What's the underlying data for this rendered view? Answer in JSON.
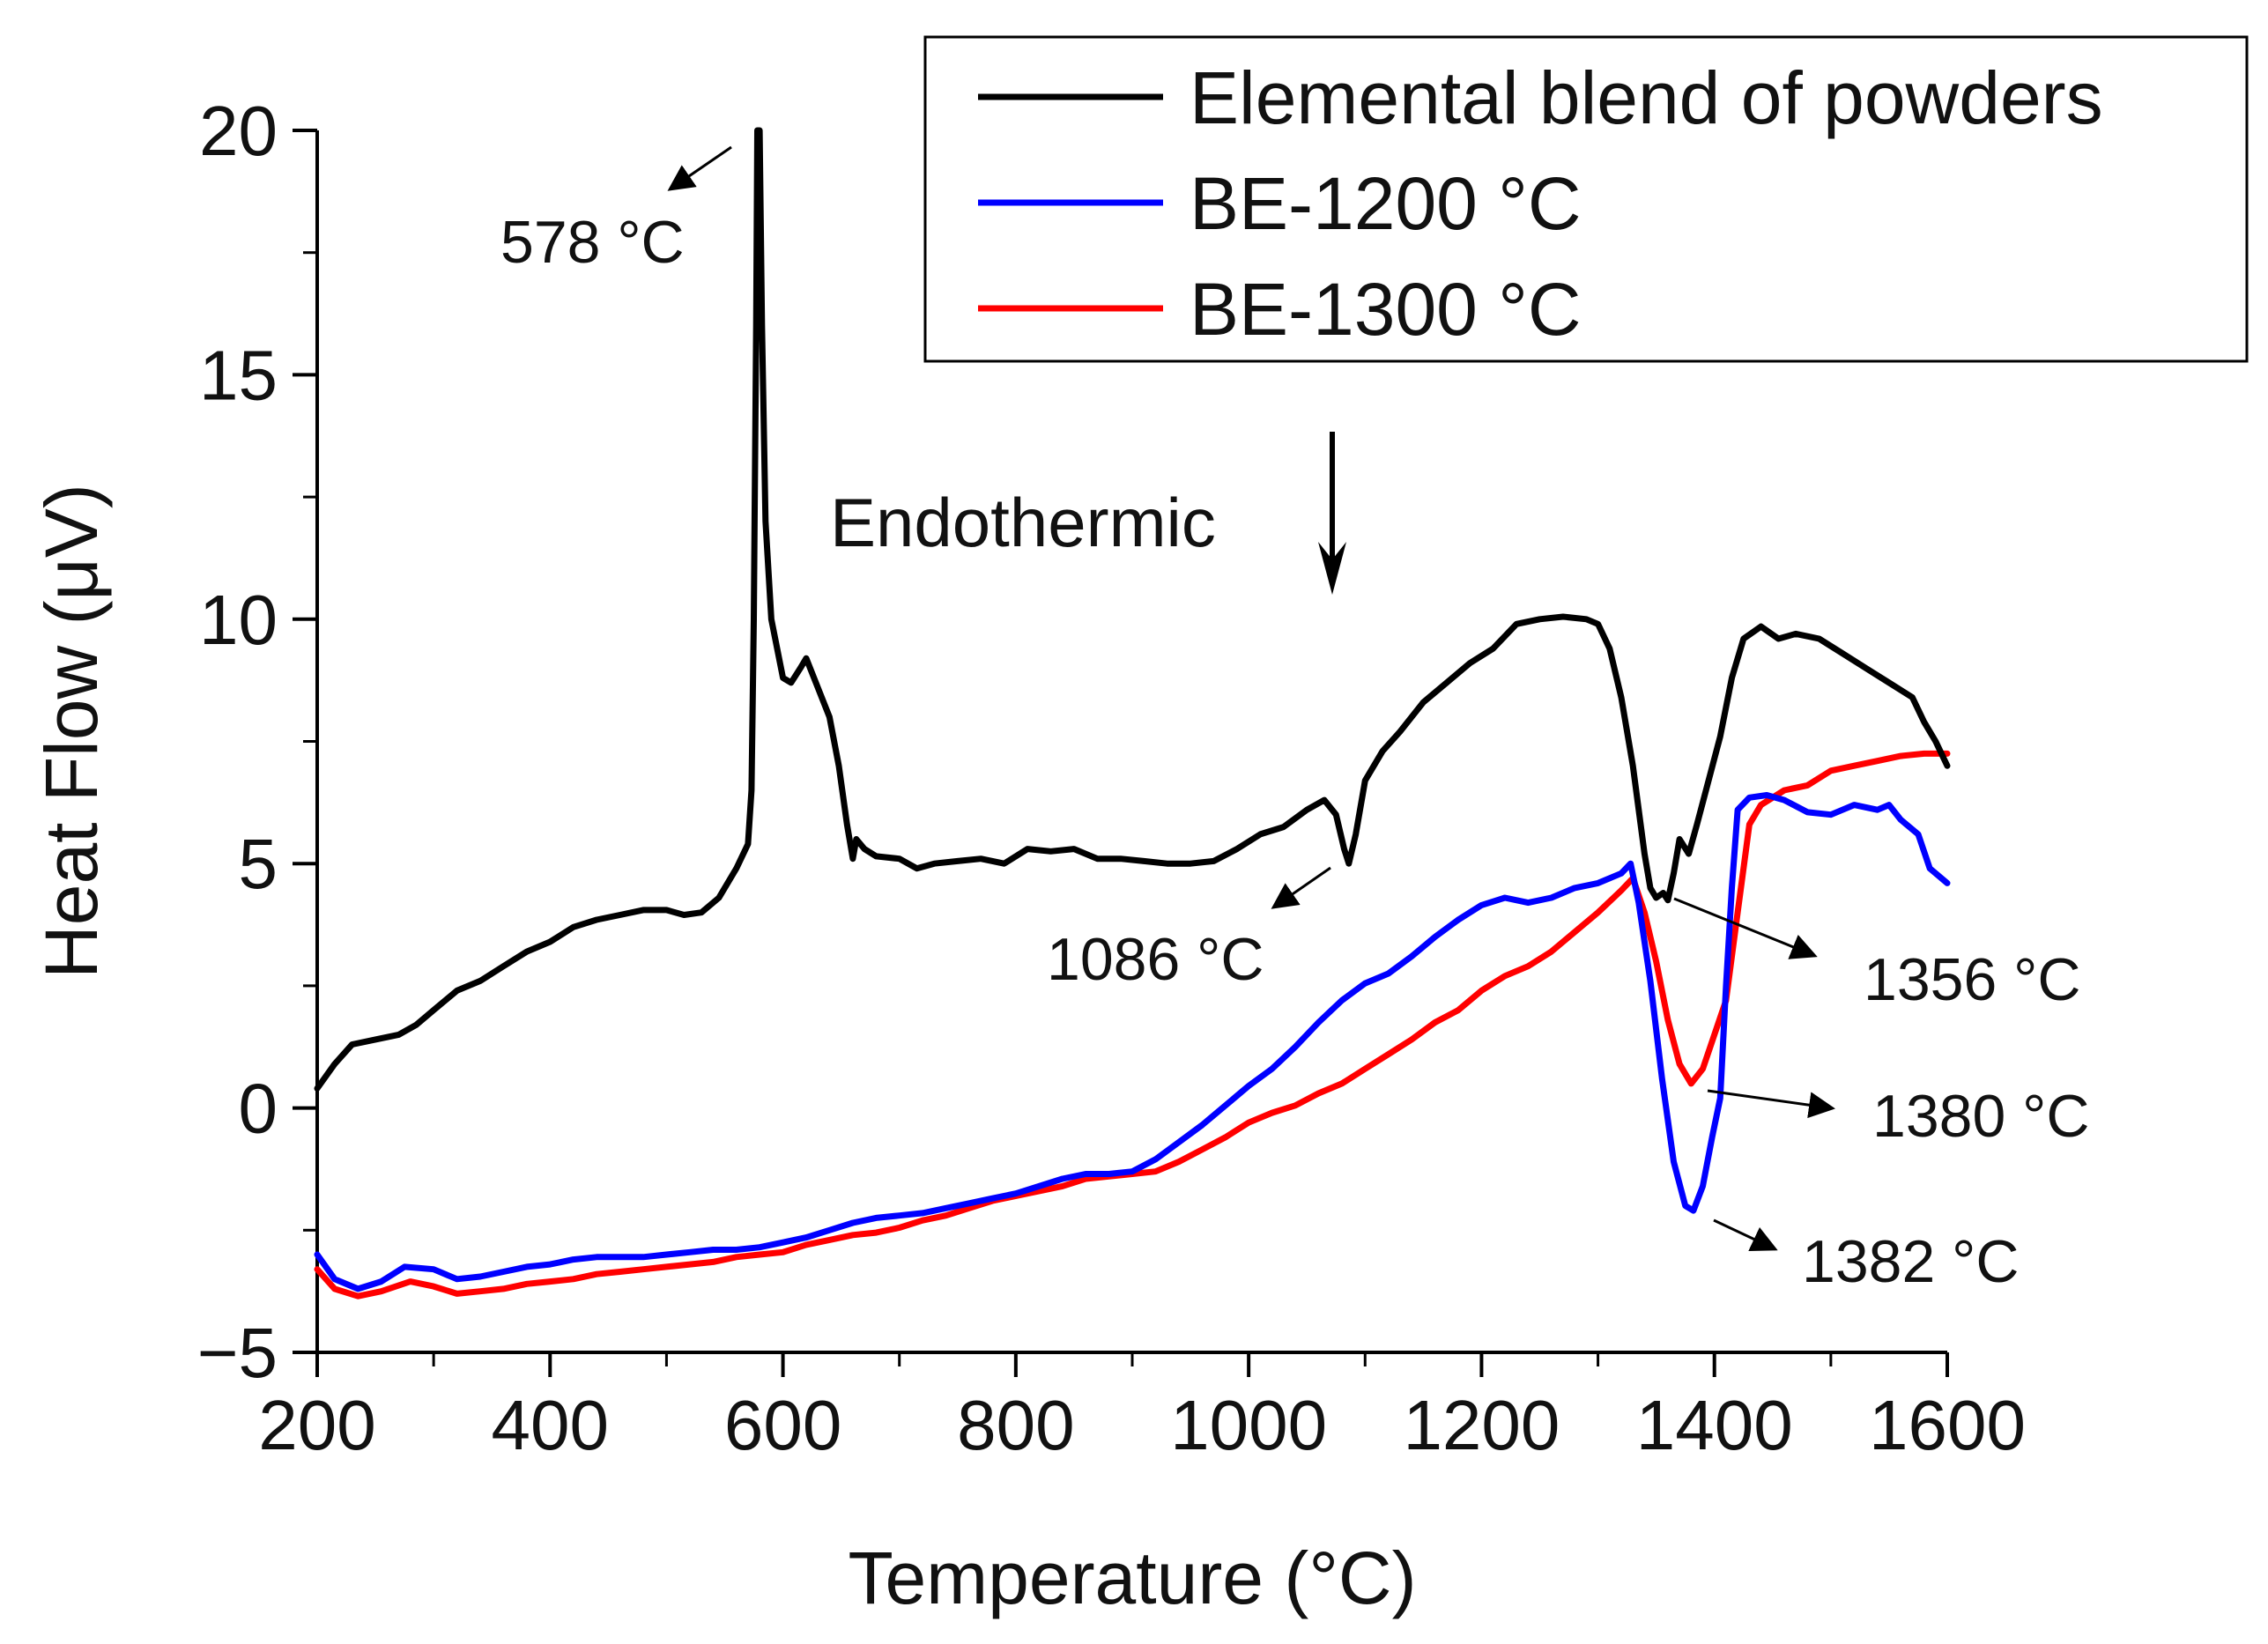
{
  "chart_data": {
    "type": "line",
    "title": "",
    "xlabel": "Temperature (°C)",
    "ylabel": "Heat Flow (μV)",
    "xlim": [
      200,
      1600
    ],
    "ylim": [
      -5,
      20
    ],
    "x_ticks": [
      200,
      400,
      600,
      800,
      1000,
      1200,
      1400,
      1600
    ],
    "y_ticks": [
      20,
      15,
      10,
      5,
      0,
      -5
    ],
    "x_tick_labels": [
      "200",
      "400",
      "600",
      "800",
      "1000",
      "1200",
      "1400",
      "1600"
    ],
    "y_tick_labels": [
      "20",
      "15",
      "10",
      "5",
      "0",
      "−5"
    ],
    "grid": false,
    "legend_position": "top-right",
    "series": [
      {
        "name": "Elemental blend of powders",
        "color": "#000000",
        "points": [
          [
            200,
            0.4
          ],
          [
            215,
            0.9
          ],
          [
            230,
            1.3
          ],
          [
            250,
            1.4
          ],
          [
            270,
            1.5
          ],
          [
            285,
            1.7
          ],
          [
            300,
            2.0
          ],
          [
            320,
            2.4
          ],
          [
            340,
            2.6
          ],
          [
            360,
            2.9
          ],
          [
            380,
            3.2
          ],
          [
            400,
            3.4
          ],
          [
            420,
            3.7
          ],
          [
            440,
            3.85
          ],
          [
            460,
            3.95
          ],
          [
            480,
            4.05
          ],
          [
            500,
            4.05
          ],
          [
            515,
            3.95
          ],
          [
            530,
            4.0
          ],
          [
            545,
            4.3
          ],
          [
            560,
            4.9
          ],
          [
            570,
            5.4
          ],
          [
            573,
            6.5
          ],
          [
            575,
            10.0
          ],
          [
            577,
            16.0
          ],
          [
            578,
            20.0
          ],
          [
            580,
            20.0
          ],
          [
            582,
            16.0
          ],
          [
            585,
            12.0
          ],
          [
            590,
            10.0
          ],
          [
            600,
            8.8
          ],
          [
            607,
            8.7
          ],
          [
            615,
            9.0
          ],
          [
            620,
            9.2
          ],
          [
            630,
            8.6
          ],
          [
            640,
            8.0
          ],
          [
            648,
            7.0
          ],
          [
            655,
            5.8
          ],
          [
            660,
            5.1
          ],
          [
            663,
            5.5
          ],
          [
            670,
            5.3
          ],
          [
            680,
            5.15
          ],
          [
            700,
            5.1
          ],
          [
            715,
            4.9
          ],
          [
            730,
            5.0
          ],
          [
            750,
            5.05
          ],
          [
            770,
            5.1
          ],
          [
            790,
            5.0
          ],
          [
            810,
            5.3
          ],
          [
            830,
            5.25
          ],
          [
            850,
            5.3
          ],
          [
            870,
            5.1
          ],
          [
            890,
            5.1
          ],
          [
            910,
            5.05
          ],
          [
            930,
            5.0
          ],
          [
            950,
            5.0
          ],
          [
            970,
            5.05
          ],
          [
            990,
            5.3
          ],
          [
            1010,
            5.6
          ],
          [
            1030,
            5.75
          ],
          [
            1050,
            6.1
          ],
          [
            1065,
            6.3
          ],
          [
            1075,
            6.0
          ],
          [
            1082,
            5.3
          ],
          [
            1086,
            5.0
          ],
          [
            1092,
            5.6
          ],
          [
            1100,
            6.7
          ],
          [
            1115,
            7.3
          ],
          [
            1130,
            7.7
          ],
          [
            1150,
            8.3
          ],
          [
            1170,
            8.7
          ],
          [
            1190,
            9.1
          ],
          [
            1210,
            9.4
          ],
          [
            1230,
            9.9
          ],
          [
            1250,
            10.0
          ],
          [
            1270,
            10.05
          ],
          [
            1290,
            10.0
          ],
          [
            1300,
            9.9
          ],
          [
            1310,
            9.4
          ],
          [
            1320,
            8.4
          ],
          [
            1330,
            7.0
          ],
          [
            1340,
            5.2
          ],
          [
            1345,
            4.5
          ],
          [
            1350,
            4.3
          ],
          [
            1356,
            4.4
          ],
          [
            1360,
            4.25
          ],
          [
            1365,
            4.8
          ],
          [
            1370,
            5.5
          ],
          [
            1378,
            5.2
          ],
          [
            1385,
            5.8
          ],
          [
            1395,
            6.7
          ],
          [
            1405,
            7.6
          ],
          [
            1415,
            8.8
          ],
          [
            1425,
            9.6
          ],
          [
            1440,
            9.85
          ],
          [
            1455,
            9.6
          ],
          [
            1470,
            9.7
          ],
          [
            1490,
            9.6
          ],
          [
            1510,
            9.3
          ],
          [
            1530,
            9.0
          ],
          [
            1550,
            8.7
          ],
          [
            1570,
            8.4
          ],
          [
            1580,
            7.9
          ],
          [
            1590,
            7.5
          ],
          [
            1600,
            7.0
          ]
        ]
      },
      {
        "name": "BE-1200 °C",
        "color": "#0000ff",
        "points": [
          [
            200,
            -3.0
          ],
          [
            215,
            -3.5
          ],
          [
            235,
            -3.7
          ],
          [
            255,
            -3.55
          ],
          [
            275,
            -3.25
          ],
          [
            300,
            -3.3
          ],
          [
            320,
            -3.5
          ],
          [
            340,
            -3.45
          ],
          [
            360,
            -3.35
          ],
          [
            380,
            -3.25
          ],
          [
            400,
            -3.2
          ],
          [
            420,
            -3.1
          ],
          [
            440,
            -3.05
          ],
          [
            460,
            -3.05
          ],
          [
            480,
            -3.05
          ],
          [
            500,
            -3.0
          ],
          [
            520,
            -2.95
          ],
          [
            540,
            -2.9
          ],
          [
            560,
            -2.9
          ],
          [
            580,
            -2.85
          ],
          [
            600,
            -2.75
          ],
          [
            620,
            -2.65
          ],
          [
            640,
            -2.5
          ],
          [
            660,
            -2.35
          ],
          [
            680,
            -2.25
          ],
          [
            700,
            -2.2
          ],
          [
            720,
            -2.15
          ],
          [
            740,
            -2.05
          ],
          [
            760,
            -1.95
          ],
          [
            780,
            -1.85
          ],
          [
            800,
            -1.75
          ],
          [
            820,
            -1.6
          ],
          [
            840,
            -1.45
          ],
          [
            860,
            -1.35
          ],
          [
            880,
            -1.35
          ],
          [
            900,
            -1.3
          ],
          [
            920,
            -1.05
          ],
          [
            940,
            -0.7
          ],
          [
            960,
            -0.35
          ],
          [
            980,
            0.05
          ],
          [
            1000,
            0.45
          ],
          [
            1020,
            0.8
          ],
          [
            1040,
            1.25
          ],
          [
            1060,
            1.75
          ],
          [
            1080,
            2.2
          ],
          [
            1100,
            2.55
          ],
          [
            1120,
            2.75
          ],
          [
            1140,
            3.1
          ],
          [
            1160,
            3.5
          ],
          [
            1180,
            3.85
          ],
          [
            1200,
            4.15
          ],
          [
            1220,
            4.3
          ],
          [
            1240,
            4.2
          ],
          [
            1260,
            4.3
          ],
          [
            1280,
            4.5
          ],
          [
            1300,
            4.6
          ],
          [
            1320,
            4.8
          ],
          [
            1328,
            5.0
          ],
          [
            1335,
            4.2
          ],
          [
            1345,
            2.6
          ],
          [
            1355,
            0.6
          ],
          [
            1365,
            -1.1
          ],
          [
            1375,
            -2.0
          ],
          [
            1382,
            -2.1
          ],
          [
            1390,
            -1.6
          ],
          [
            1398,
            -0.6
          ],
          [
            1405,
            0.2
          ],
          [
            1410,
            2.5
          ],
          [
            1415,
            4.5
          ],
          [
            1420,
            6.1
          ],
          [
            1430,
            6.35
          ],
          [
            1445,
            6.4
          ],
          [
            1460,
            6.3
          ],
          [
            1480,
            6.05
          ],
          [
            1500,
            6.0
          ],
          [
            1520,
            6.2
          ],
          [
            1540,
            6.1
          ],
          [
            1550,
            6.2
          ],
          [
            1560,
            5.9
          ],
          [
            1575,
            5.6
          ],
          [
            1585,
            4.9
          ],
          [
            1600,
            4.6
          ]
        ]
      },
      {
        "name": "BE-1300 °C",
        "color": "#ff0000",
        "points": [
          [
            200,
            -3.3
          ],
          [
            215,
            -3.7
          ],
          [
            235,
            -3.85
          ],
          [
            255,
            -3.75
          ],
          [
            280,
            -3.55
          ],
          [
            300,
            -3.65
          ],
          [
            320,
            -3.8
          ],
          [
            340,
            -3.75
          ],
          [
            360,
            -3.7
          ],
          [
            380,
            -3.6
          ],
          [
            400,
            -3.55
          ],
          [
            420,
            -3.5
          ],
          [
            440,
            -3.4
          ],
          [
            460,
            -3.35
          ],
          [
            480,
            -3.3
          ],
          [
            500,
            -3.25
          ],
          [
            520,
            -3.2
          ],
          [
            540,
            -3.15
          ],
          [
            560,
            -3.05
          ],
          [
            580,
            -3.0
          ],
          [
            600,
            -2.95
          ],
          [
            620,
            -2.8
          ],
          [
            640,
            -2.7
          ],
          [
            660,
            -2.6
          ],
          [
            680,
            -2.55
          ],
          [
            700,
            -2.45
          ],
          [
            720,
            -2.3
          ],
          [
            740,
            -2.2
          ],
          [
            760,
            -2.05
          ],
          [
            780,
            -1.9
          ],
          [
            800,
            -1.8
          ],
          [
            820,
            -1.7
          ],
          [
            840,
            -1.6
          ],
          [
            860,
            -1.45
          ],
          [
            880,
            -1.4
          ],
          [
            900,
            -1.35
          ],
          [
            920,
            -1.3
          ],
          [
            940,
            -1.1
          ],
          [
            960,
            -0.85
          ],
          [
            980,
            -0.6
          ],
          [
            1000,
            -0.3
          ],
          [
            1020,
            -0.1
          ],
          [
            1040,
            0.05
          ],
          [
            1060,
            0.3
          ],
          [
            1080,
            0.5
          ],
          [
            1100,
            0.8
          ],
          [
            1120,
            1.1
          ],
          [
            1140,
            1.4
          ],
          [
            1160,
            1.75
          ],
          [
            1180,
            2.0
          ],
          [
            1200,
            2.4
          ],
          [
            1220,
            2.7
          ],
          [
            1240,
            2.9
          ],
          [
            1260,
            3.2
          ],
          [
            1280,
            3.6
          ],
          [
            1300,
            4.0
          ],
          [
            1320,
            4.45
          ],
          [
            1330,
            4.7
          ],
          [
            1340,
            4.0
          ],
          [
            1350,
            3.0
          ],
          [
            1360,
            1.8
          ],
          [
            1370,
            0.9
          ],
          [
            1380,
            0.5
          ],
          [
            1390,
            0.8
          ],
          [
            1400,
            1.5
          ],
          [
            1410,
            2.2
          ],
          [
            1420,
            4.0
          ],
          [
            1430,
            5.8
          ],
          [
            1440,
            6.2
          ],
          [
            1460,
            6.5
          ],
          [
            1480,
            6.6
          ],
          [
            1500,
            6.9
          ],
          [
            1520,
            7.0
          ],
          [
            1540,
            7.1
          ],
          [
            1560,
            7.2
          ],
          [
            1580,
            7.25
          ],
          [
            1600,
            7.25
          ]
        ]
      }
    ],
    "annotations": [
      {
        "text": "578 °C"
      },
      {
        "text": "1086 °C"
      },
      {
        "text": "1356 °C"
      },
      {
        "text": "1380 °C"
      },
      {
        "text": "1382 °C"
      },
      {
        "text": "Endothermic"
      }
    ]
  }
}
